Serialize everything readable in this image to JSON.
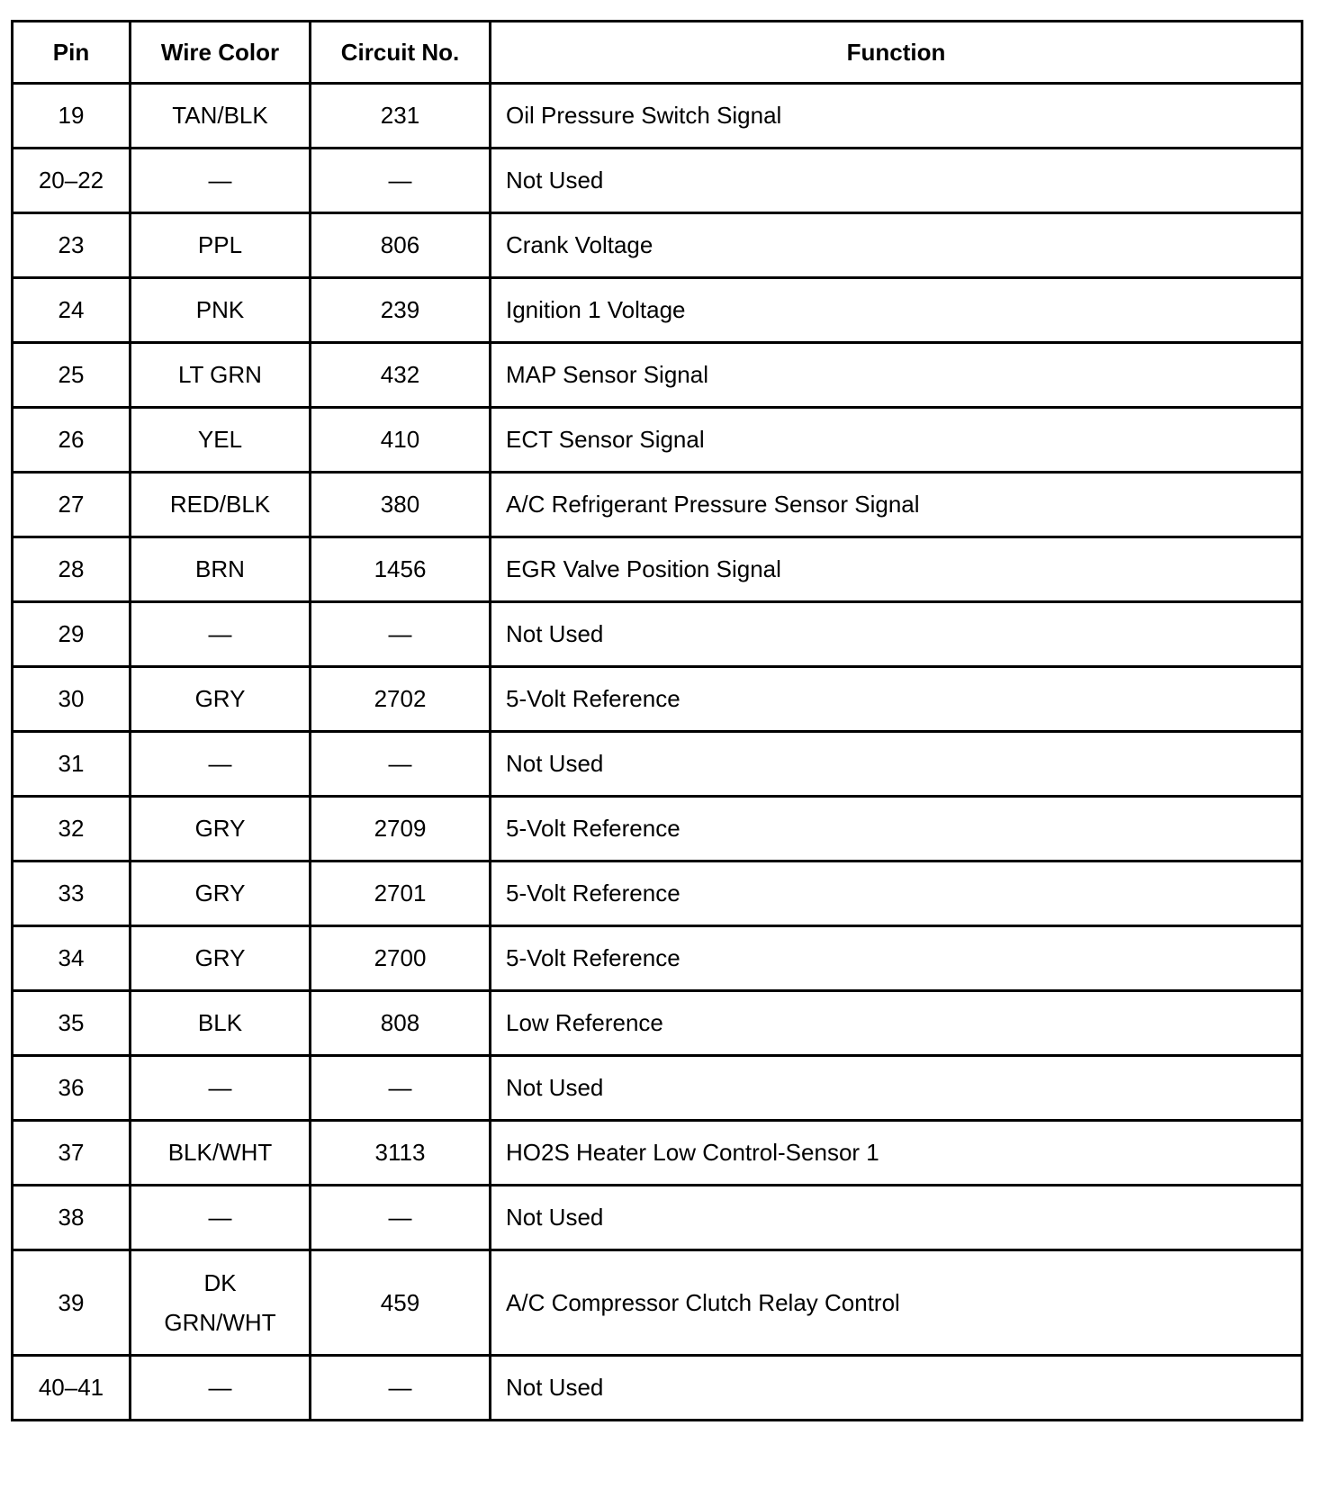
{
  "table": {
    "headers": [
      "Pin",
      "Wire Color",
      "Circuit No.",
      "Function"
    ],
    "rows": [
      {
        "pin": "19",
        "wire": "TAN/BLK",
        "circuit": "231",
        "function": "Oil Pressure Switch Signal"
      },
      {
        "pin": "20–22",
        "wire": "—",
        "circuit": "—",
        "function": "Not Used"
      },
      {
        "pin": "23",
        "wire": "PPL",
        "circuit": "806",
        "function": "Crank Voltage"
      },
      {
        "pin": "24",
        "wire": "PNK",
        "circuit": "239",
        "function": "Ignition 1 Voltage"
      },
      {
        "pin": "25",
        "wire": "LT GRN",
        "circuit": "432",
        "function": "MAP Sensor Signal"
      },
      {
        "pin": "26",
        "wire": "YEL",
        "circuit": "410",
        "function": "ECT Sensor Signal"
      },
      {
        "pin": "27",
        "wire": "RED/BLK",
        "circuit": "380",
        "function": "A/C Refrigerant Pressure Sensor Signal"
      },
      {
        "pin": "28",
        "wire": "BRN",
        "circuit": "1456",
        "function": "EGR Valve Position Signal"
      },
      {
        "pin": "29",
        "wire": "—",
        "circuit": "—",
        "function": "Not Used"
      },
      {
        "pin": "30",
        "wire": "GRY",
        "circuit": "2702",
        "function": "5-Volt Reference"
      },
      {
        "pin": "31",
        "wire": "—",
        "circuit": "—",
        "function": "Not Used"
      },
      {
        "pin": "32",
        "wire": "GRY",
        "circuit": "2709",
        "function": "5-Volt Reference"
      },
      {
        "pin": "33",
        "wire": "GRY",
        "circuit": "2701",
        "function": "5-Volt Reference"
      },
      {
        "pin": "34",
        "wire": "GRY",
        "circuit": "2700",
        "function": "5-Volt Reference"
      },
      {
        "pin": "35",
        "wire": "BLK",
        "circuit": "808",
        "function": "Low Reference"
      },
      {
        "pin": "36",
        "wire": "—",
        "circuit": "—",
        "function": "Not Used"
      },
      {
        "pin": "37",
        "wire": "BLK/WHT",
        "circuit": "3113",
        "function": "HO2S Heater Low Control-Sensor 1"
      },
      {
        "pin": "38",
        "wire": "—",
        "circuit": "—",
        "function": "Not Used"
      },
      {
        "pin": "39",
        "wire": "DK GRN/WHT",
        "circuit": "459",
        "function": "A/C Compressor Clutch Relay Control"
      },
      {
        "pin": "40–41",
        "wire": "—",
        "circuit": "—",
        "function": "Not Used"
      }
    ]
  }
}
